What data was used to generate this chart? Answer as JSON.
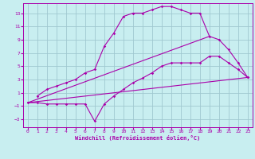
{
  "xlabel": "Windchill (Refroidissement éolien,°C)",
  "bg_color": "#c8eef0",
  "grid_color": "#a0c8d0",
  "line_color": "#aa00aa",
  "xlim": [
    -0.5,
    23.5
  ],
  "ylim": [
    -4.2,
    14.5
  ],
  "xticks": [
    0,
    1,
    2,
    3,
    4,
    5,
    6,
    7,
    8,
    9,
    10,
    11,
    12,
    13,
    14,
    15,
    16,
    17,
    18,
    19,
    20,
    21,
    22,
    23
  ],
  "yticks": [
    -3,
    -1,
    1,
    3,
    5,
    7,
    9,
    11,
    13
  ],
  "line1_x": [
    0,
    1,
    2,
    3,
    4,
    5,
    6,
    7,
    8,
    9,
    10,
    11,
    12,
    13,
    14,
    15,
    16,
    17,
    18,
    19,
    20,
    21,
    22,
    23
  ],
  "line1_y": [
    -0.5,
    -0.5,
    -0.7,
    -0.7,
    -0.7,
    -0.7,
    -0.7,
    -3.3,
    -0.7,
    0.5,
    1.5,
    2.5,
    3.2,
    4.0,
    5.0,
    5.5,
    5.5,
    5.5,
    5.5,
    6.5,
    6.5,
    5.5,
    4.5,
    3.3
  ],
  "line2_x": [
    1,
    2,
    3,
    4,
    5,
    6,
    7,
    8,
    9,
    10,
    11,
    12,
    13,
    14,
    15,
    16,
    17,
    18,
    19,
    20,
    21,
    22,
    23
  ],
  "line2_y": [
    0.5,
    1.5,
    2.0,
    2.5,
    3.0,
    4.0,
    4.5,
    8.0,
    10.0,
    12.5,
    13.0,
    13.0,
    13.5,
    14.0,
    14.0,
    13.5,
    13.0,
    13.0,
    9.5,
    9.0,
    7.5,
    5.5,
    3.3
  ],
  "line3_x": [
    0,
    23
  ],
  "line3_y": [
    -0.5,
    3.3
  ],
  "line4_x": [
    0,
    19
  ],
  "line4_y": [
    -0.5,
    9.5
  ],
  "tick_font_size": 4.5,
  "xlabel_font_size": 5.0
}
